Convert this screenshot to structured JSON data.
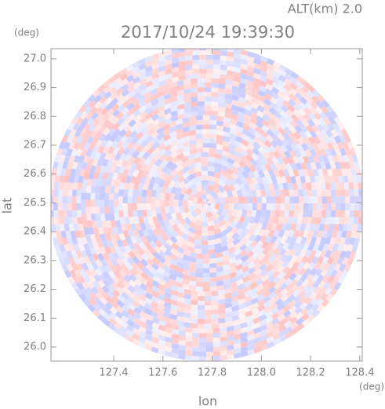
{
  "header": {
    "altitude": "ALT(km) 2.0",
    "time": "2017/10/24 19:39:30"
  },
  "chart_data": {
    "type": "radar-map",
    "xlabel": "lon",
    "ylabel": "lat",
    "xunit": "(deg)",
    "yunit": "(deg)",
    "xlim": [
      127.145,
      128.41
    ],
    "ylim": [
      25.951,
      27.035
    ],
    "xticks": [
      127.4,
      127.6,
      127.8,
      {
        "value": 128,
        "label": "128.0"
      },
      128.2,
      128.4
    ],
    "yticks": [
      {
        "value": 26,
        "label": "26.0"
      },
      26.1,
      26.2,
      26.3,
      26.4,
      26.5,
      26.6,
      26.7,
      26.8,
      26.9,
      {
        "value": 27,
        "label": "27.0"
      }
    ]
  }
}
